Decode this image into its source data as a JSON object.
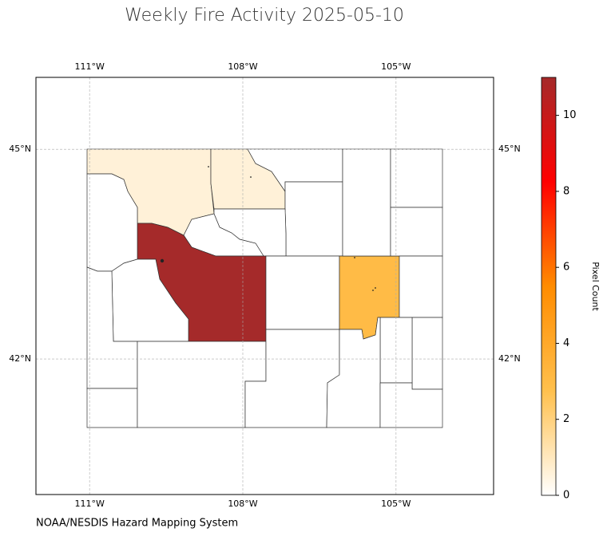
{
  "chart_data": {
    "type": "choropleth",
    "title": "Weekly Fire Activity 2025-05-10",
    "footer": "NOAA/NESDIS Hazard Mapping System",
    "colorbar_label": "Pixel Count",
    "values": [
      0.6,
      0.6,
      0,
      0,
      0,
      0,
      11,
      0,
      0,
      0,
      0,
      0,
      0,
      0,
      3,
      0,
      0,
      0,
      0,
      0,
      0,
      0,
      0
    ],
    "clim": [
      0,
      11
    ],
    "cbar_ticks": [
      0,
      2,
      4,
      6,
      8,
      10
    ],
    "colormap": [
      "#ffffff",
      "#ffc04d",
      "#ff8c00",
      "#ff0000",
      "#a52a2a"
    ],
    "xlim": [
      -112.05,
      -103.09
    ],
    "ylim": [
      40.06,
      46.03
    ],
    "xticks": [
      {
        "value": -111,
        "label": "111°W"
      },
      {
        "value": -108,
        "label": "108°W"
      },
      {
        "value": -105,
        "label": "105°W"
      }
    ],
    "yticks": [
      {
        "value": 42,
        "label": "42°N"
      },
      {
        "value": 45,
        "label": "45°N"
      }
    ],
    "grid": true
  }
}
